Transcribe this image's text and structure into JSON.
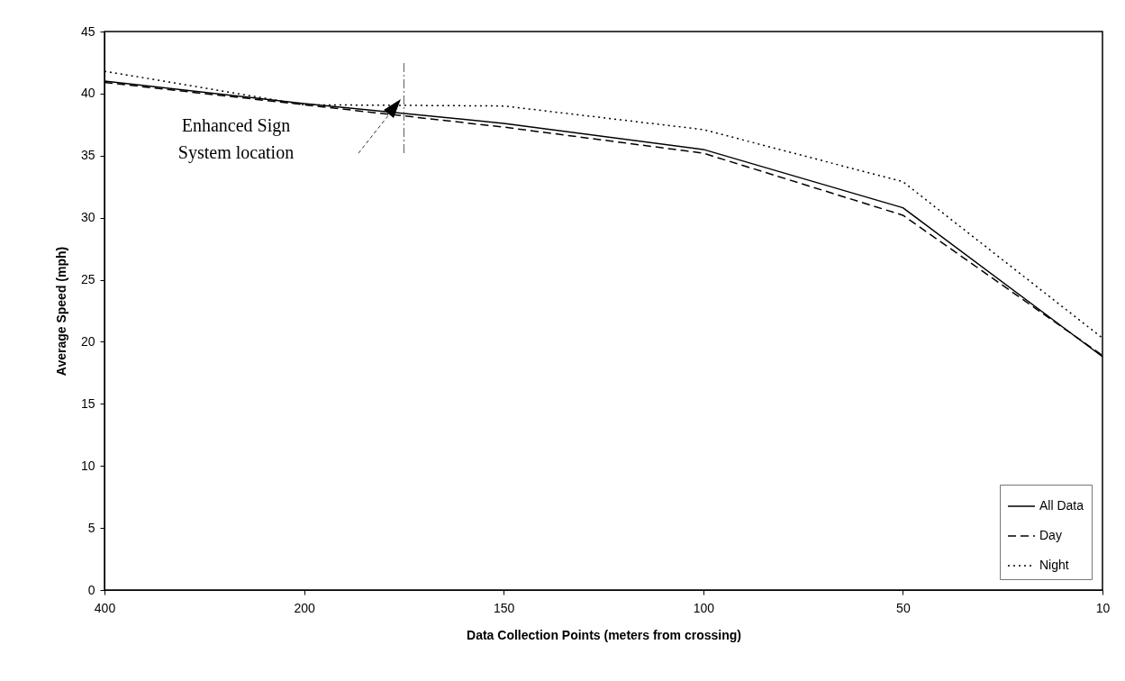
{
  "chart_data": {
    "type": "line",
    "xlabel": "Data Collection Points (meters from crossing)",
    "ylabel": "Average Speed (mph)",
    "categories": [
      "400",
      "200",
      "150",
      "100",
      "50",
      "10"
    ],
    "series": [
      {
        "name": "All Data",
        "color": "#000000",
        "line_style": "solid",
        "values": [
          41.0,
          39.2,
          37.6,
          35.5,
          30.8,
          18.8
        ]
      },
      {
        "name": "Day",
        "color": "#000000",
        "line_style": "dashed",
        "values": [
          40.9,
          39.1,
          37.3,
          35.2,
          30.2,
          18.9
        ]
      },
      {
        "name": "Night",
        "color": "#000000",
        "line_style": "dotted",
        "values": [
          41.8,
          39.1,
          39.0,
          37.1,
          32.9,
          20.3
        ]
      }
    ],
    "ylim": [
      0,
      45
    ],
    "yticks": [
      0,
      5,
      10,
      15,
      20,
      25,
      30,
      35,
      40,
      45
    ],
    "grid": false,
    "legend": "bottom right",
    "marker": "none",
    "annotations": [
      "Enhanced Sign System location"
    ]
  }
}
